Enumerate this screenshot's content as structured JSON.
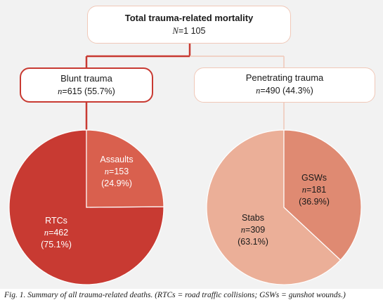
{
  "colors": {
    "rtcs": "#c83a32",
    "assaults": "#d9604e",
    "stabs": "#ebaf98",
    "gsws": "#df8a72",
    "connector": "#c83a32",
    "connector_light": "#f0c8b8"
  },
  "diagram": {
    "total": {
      "title": "Total trauma-related mortality",
      "n_label": "N",
      "n_value": "=1 105"
    },
    "blunt": {
      "title": "Blunt trauma",
      "n_label": "n",
      "n_value": "=615 (55.7%)"
    },
    "penetrating": {
      "title": "Penetrating trauma",
      "n_label": "n",
      "n_value": "=490 (44.3%)"
    }
  },
  "chart_data": [
    {
      "type": "pie",
      "slices": [
        {
          "label": "RTCs",
          "n_label": "n",
          "n_value": "=462",
          "pct_label": "(75.1%)",
          "value": 462,
          "percent": 75.1
        },
        {
          "label": "Assaults",
          "n_label": "n",
          "n_value": "=153",
          "pct_label": "(24.9%)",
          "value": 153,
          "percent": 24.9
        }
      ]
    },
    {
      "type": "pie",
      "slices": [
        {
          "label": "Stabs",
          "n_label": "n",
          "n_value": "=309",
          "pct_label": "(63.1%)",
          "value": 309,
          "percent": 63.1
        },
        {
          "label": "GSWs",
          "n_label": "n",
          "n_value": "=181",
          "pct_label": "(36.9%)",
          "value": 181,
          "percent": 36.9
        }
      ]
    }
  ],
  "caption": "Fig. 1. Summary of all trauma-related deaths. (RTCs = road traffic collisions; GSWs = gunshot wounds.)"
}
